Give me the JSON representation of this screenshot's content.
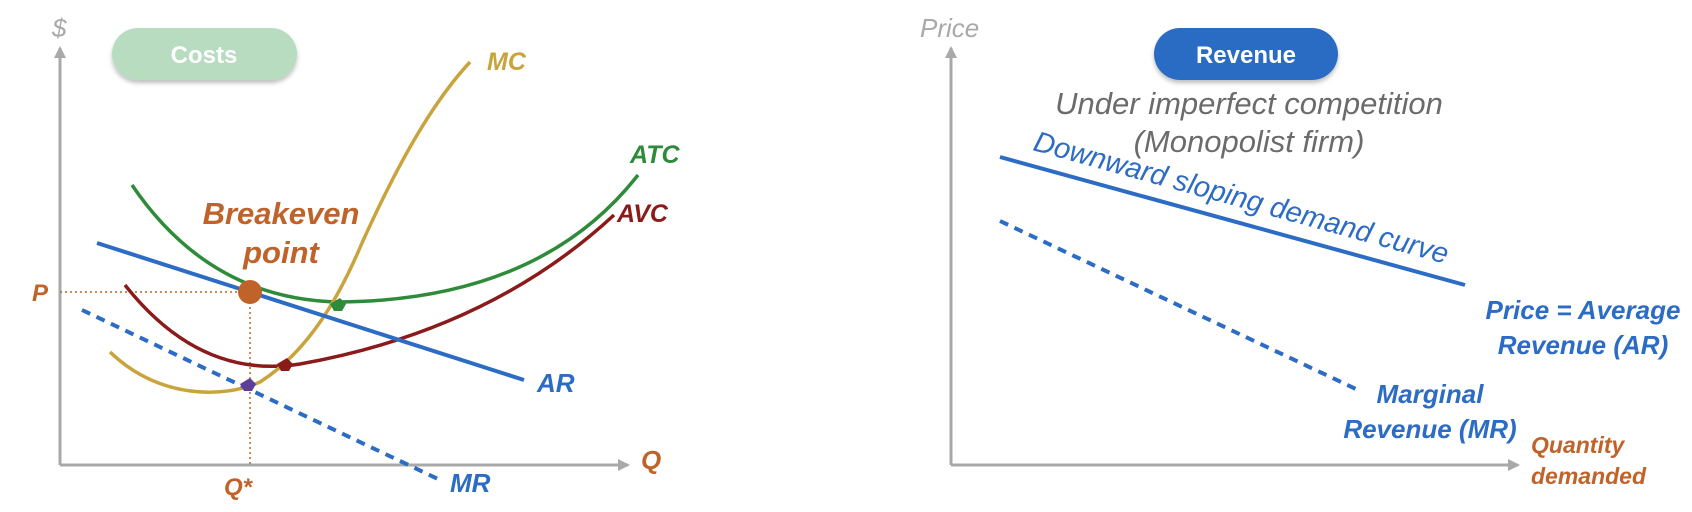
{
  "left_panel": {
    "pill_label": "Costs",
    "y_axis_label": "$",
    "x_axis_label": "Q",
    "curve_labels": {
      "mc": "MC",
      "atc": "ATC",
      "avc": "AVC",
      "ar": "AR",
      "mr": "MR"
    },
    "breakeven_line1": "Breakeven",
    "breakeven_line2": "point",
    "p_label": "P",
    "qstar_label": "Q*"
  },
  "right_panel": {
    "pill_label": "Revenue",
    "y_axis_label": "Price",
    "note_line1": "Under imperfect competition",
    "note_line2": "(Monopolist firm)",
    "demand_curve_caption": "Downward sloping demand curve",
    "ar_label_line1": "Price = Average",
    "ar_label_line2": "Revenue (AR)",
    "mr_label_line1": "Marginal",
    "mr_label_line2": "Revenue (MR)",
    "x_axis_label_line1": "Quantity",
    "x_axis_label_line2": "demanded"
  },
  "colors": {
    "axis": "#a9a9a9",
    "mc": "#c9a43c",
    "atc": "#2e8b3a",
    "avc": "#8b1a1a",
    "blue": "#2c6cc4",
    "orange": "#c0632a",
    "pill_costs": "#b7dcc0",
    "pill_revenue": "#2b6cc4"
  }
}
